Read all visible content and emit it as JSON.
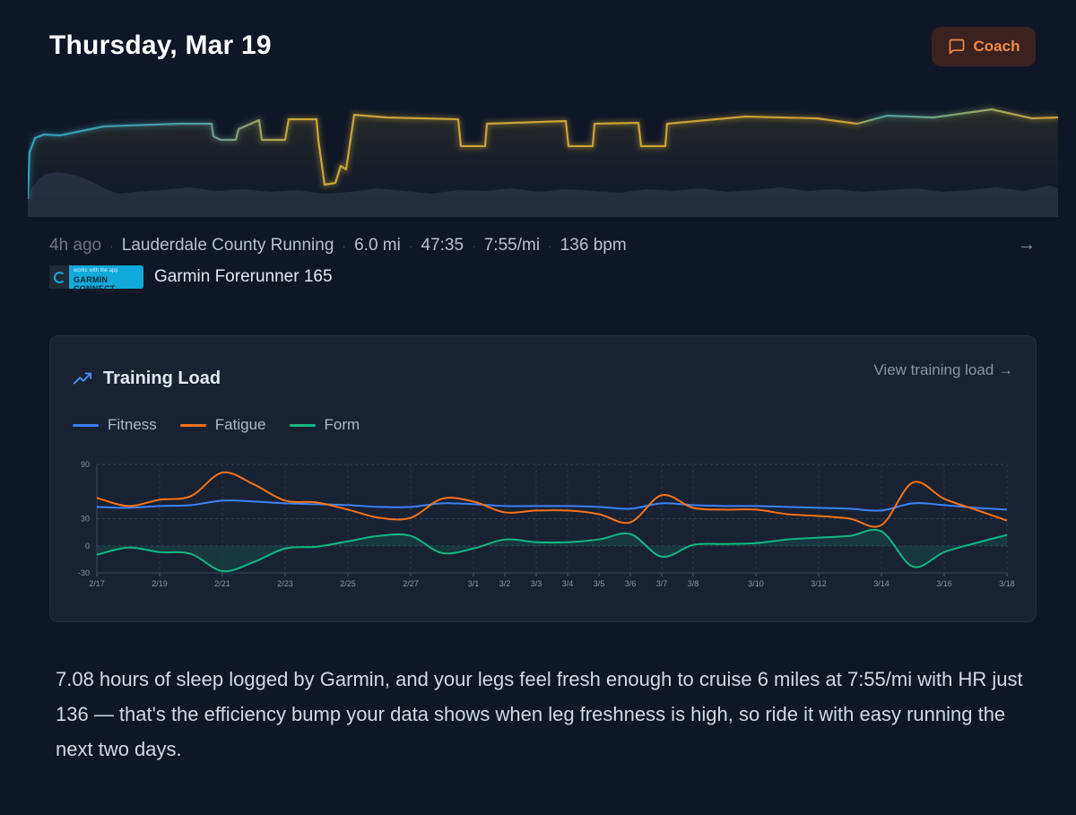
{
  "header": {
    "title": "Thursday, Mar 19",
    "coach_label": "Coach"
  },
  "activity": {
    "time_ago": "4h ago",
    "name": "Lauderdale County Running",
    "distance": "6.0 mi",
    "duration": "47:35",
    "pace": "7:55/mi",
    "heart_rate": "136 bpm",
    "device": "Garmin Forerunner 165",
    "badge_line1": "works with the app",
    "badge_line2": "GARMIN CONNECT"
  },
  "training_load": {
    "title": "Training Load",
    "view_link": "View training load →"
  },
  "colors": {
    "fitness": "#3b82f6",
    "fatigue": "#f97316",
    "form": "#10b981",
    "accent": "#f08a45",
    "background": "#0f1626"
  },
  "icons": {
    "coach": "message-square-icon",
    "trend": "trending-up-icon",
    "arrow": "arrow-right-icon",
    "badge": "garmin-connect-logo"
  },
  "chart_data": {
    "type": "line",
    "x": [
      "2/17",
      "2/18",
      "2/19",
      "2/20",
      "2/21",
      "2/22",
      "2/23",
      "2/24",
      "2/25",
      "2/26",
      "2/27",
      "2/28",
      "3/1",
      "3/2",
      "3/3",
      "3/4",
      "3/5",
      "3/6",
      "3/7",
      "3/8",
      "3/9",
      "3/10",
      "3/11",
      "3/12",
      "3/13",
      "3/14",
      "3/15",
      "3/16",
      "3/17",
      "3/18"
    ],
    "tick_labels": [
      "2/17",
      "2/19",
      "2/21",
      "2/23",
      "2/25",
      "2/27",
      "3/1",
      "3/2",
      "3/3",
      "3/4",
      "3/5",
      "3/6",
      "3/7",
      "3/8",
      "3/10",
      "3/12",
      "3/14",
      "3/16",
      "3/18"
    ],
    "series": [
      {
        "name": "Fitness",
        "values": [
          43,
          42,
          44,
          45,
          50,
          49,
          47,
          46,
          45,
          43,
          43,
          47,
          46,
          44,
          44,
          44,
          43,
          41,
          47,
          45,
          44,
          44,
          43,
          42,
          41,
          39,
          47,
          45,
          42,
          40
        ]
      },
      {
        "name": "Fatigue",
        "values": [
          53,
          44,
          51,
          55,
          81,
          68,
          50,
          48,
          40,
          31,
          31,
          52,
          49,
          37,
          39,
          39,
          35,
          26,
          56,
          42,
          40,
          40,
          35,
          33,
          30,
          23,
          70,
          52,
          40,
          28
        ]
      },
      {
        "name": "Form",
        "values": [
          -10,
          -2,
          -7,
          -9,
          -28,
          -18,
          -3,
          -1,
          5,
          11,
          11,
          -8,
          -3,
          7,
          4,
          4,
          7,
          13,
          -12,
          1,
          2,
          3,
          7,
          9,
          11,
          16,
          -23,
          -7,
          3,
          12
        ]
      }
    ],
    "ylim": [
      -30,
      90
    ],
    "yticks": [
      90,
      30,
      0,
      -30
    ],
    "grid": true,
    "legend": "top-left"
  }
}
